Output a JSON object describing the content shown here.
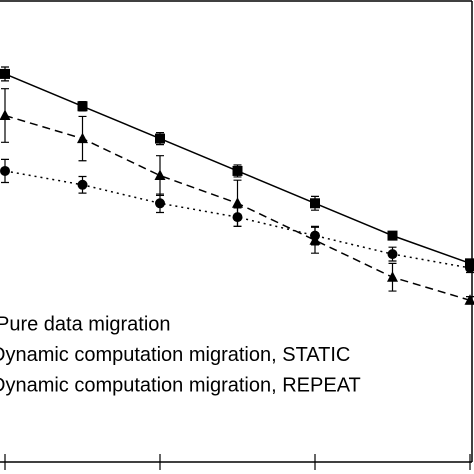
{
  "chart_data": {
    "type": "line",
    "x": [
      1,
      2,
      3,
      4,
      5,
      6,
      7
    ],
    "xlim": [
      1,
      7
    ],
    "xticks": [
      1,
      3,
      5,
      7
    ],
    "ylim": [
      0,
      100
    ],
    "series": [
      {
        "name": "Pure data migration",
        "color": "#000000",
        "marker": "square",
        "dash": "solid",
        "values": [
          84,
          77,
          70,
          63,
          56,
          49,
          43
        ],
        "errors": [
          1.5,
          1,
          1.3,
          1.3,
          1.5,
          0.8,
          0.8
        ]
      },
      {
        "name": "Dynamic computation migration, STATIC",
        "color": "#000000",
        "marker": "triangle",
        "dash": "dashed",
        "values": [
          75,
          70,
          62,
          56,
          48,
          40,
          35
        ],
        "errors": [
          5.8,
          4.8,
          4.3,
          5,
          2.8,
          3,
          0.8
        ]
      },
      {
        "name": "Dynamic computation migration, REPEAT",
        "color": "#000000",
        "marker": "circle",
        "dash": "dotted",
        "values": [
          63,
          60,
          56,
          53,
          49,
          45,
          42
        ],
        "errors": [
          2.5,
          1.8,
          2,
          2,
          2,
          1.5,
          1
        ]
      }
    ]
  }
}
